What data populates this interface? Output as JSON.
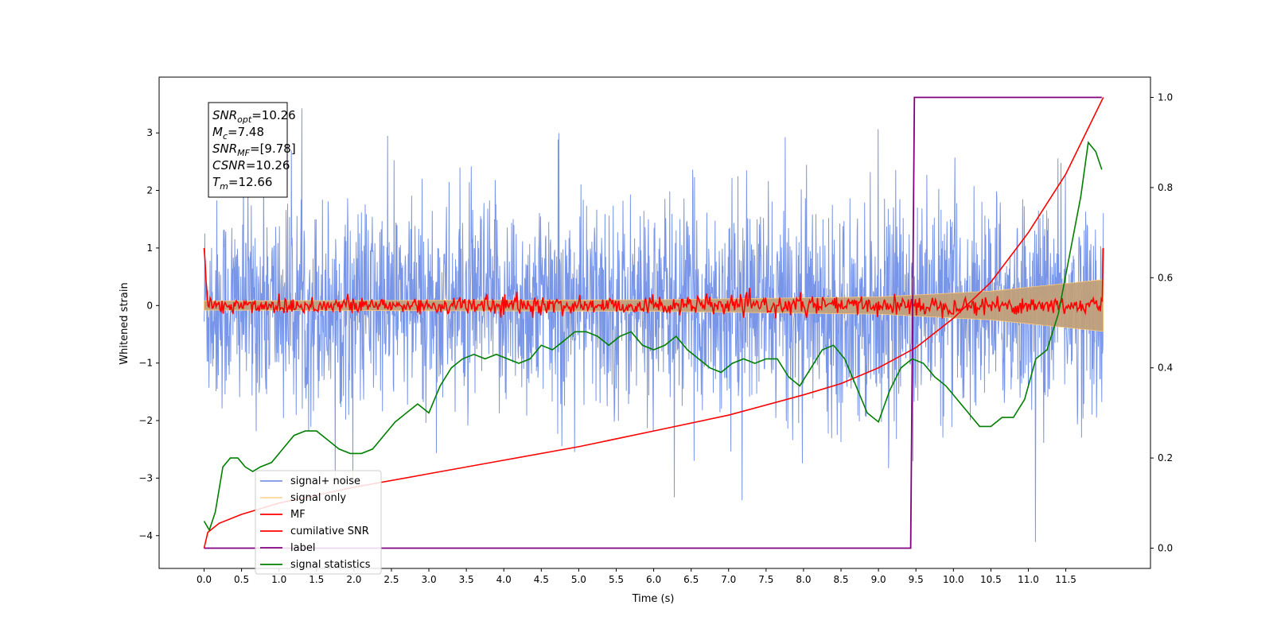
{
  "chart_data": {
    "type": "line",
    "xlabel": "Time (s)",
    "ylabel": "Whitened strain",
    "xlim": [
      -0.6,
      12.63
    ],
    "ylim": [
      -4.57,
      3.97
    ],
    "ylim_right": [
      -0.045,
      1.045
    ],
    "x_ticks": [
      0.0,
      0.5,
      1.0,
      1.5,
      2.0,
      2.5,
      3.0,
      3.5,
      4.0,
      4.5,
      5.0,
      5.5,
      6.0,
      6.5,
      7.0,
      7.5,
      8.0,
      8.5,
      9.0,
      9.5,
      10.0,
      10.5,
      11.0,
      11.5
    ],
    "x_tick_labels": [
      "0.0",
      "0.5",
      "1.0",
      "1.5",
      "2.0",
      "2.5",
      "3.0",
      "3.5",
      "4.0",
      "4.5",
      "5.0",
      "5.5",
      "6.0",
      "6.5",
      "7.0",
      "7.5",
      "8.0",
      "8.5",
      "9.0",
      "9.5",
      "10.0",
      "10.5",
      "11.0",
      "11.5"
    ],
    "y_ticks": [
      -4,
      -3,
      -2,
      -1,
      0,
      1,
      2,
      3
    ],
    "y_tick_labels": [
      "−4",
      "−3",
      "−2",
      "−1",
      "0",
      "1",
      "2",
      "3"
    ],
    "y_right_ticks": [
      0.0,
      0.2,
      0.4,
      0.6,
      0.8,
      1.0
    ],
    "y_right_tick_labels": [
      "0.0",
      "0.2",
      "0.4",
      "0.6",
      "0.8",
      "1.0"
    ],
    "annotation": [
      {
        "base": "SNR",
        "sub": "opt",
        "rest": "=10.26"
      },
      {
        "base": "M",
        "sub": "c",
        "rest": "=7.48"
      },
      {
        "base": "SNR",
        "sub": "MF",
        "rest": "=[9.78]"
      },
      {
        "base": "CSNR",
        "sub": "",
        "rest": "=10.26"
      },
      {
        "base": "T",
        "sub": "m",
        "rest": "=12.66"
      }
    ],
    "legend_position": "lower-left",
    "series": [
      {
        "name": "signal+ noise",
        "color": "#7895e8",
        "axis": "left",
        "amplitude_rms": 0.9,
        "range": [
          -4.15,
          3.6
        ]
      },
      {
        "name": "signal only",
        "color": "#ffc87a",
        "fill_color": "#c1a07a",
        "axis": "left",
        "envelope": {
          "x": [
            0.0,
            6.0,
            9.0,
            10.5,
            12.0
          ],
          "amplitude": [
            0.08,
            0.1,
            0.15,
            0.25,
            0.45
          ]
        }
      },
      {
        "name": "MF",
        "color": "#ff0000",
        "axis": "left",
        "amplitude_rms": 0.08,
        "start_value": 1.0,
        "end_value": 1.0
      },
      {
        "name": "cumilative SNR",
        "color": "#ff0000",
        "axis": "right",
        "x": [
          0.0,
          0.05,
          0.2,
          0.5,
          1.0,
          2.0,
          3.0,
          4.0,
          5.0,
          6.0,
          7.0,
          8.0,
          8.5,
          9.0,
          9.5,
          10.0,
          10.5,
          11.0,
          11.5,
          12.0
        ],
        "y": [
          0.0,
          0.035,
          0.055,
          0.075,
          0.1,
          0.135,
          0.165,
          0.195,
          0.225,
          0.26,
          0.295,
          0.34,
          0.365,
          0.4,
          0.445,
          0.51,
          0.59,
          0.7,
          0.83,
          1.0
        ]
      },
      {
        "name": "label",
        "color": "#800080",
        "axis": "right",
        "x": [
          0.0,
          9.43,
          9.48,
          11.98
        ],
        "y": [
          0.0,
          0.0,
          1.0,
          1.0
        ]
      },
      {
        "name": "signal statistics",
        "color": "#008000",
        "axis": "right",
        "x": [
          0.0,
          0.07,
          0.15,
          0.25,
          0.35,
          0.45,
          0.55,
          0.65,
          0.75,
          0.9,
          1.05,
          1.2,
          1.35,
          1.5,
          1.65,
          1.8,
          1.95,
          2.1,
          2.25,
          2.4,
          2.55,
          2.7,
          2.85,
          3.0,
          3.15,
          3.3,
          3.45,
          3.6,
          3.75,
          3.9,
          4.05,
          4.2,
          4.35,
          4.5,
          4.65,
          4.8,
          4.95,
          5.1,
          5.25,
          5.4,
          5.55,
          5.7,
          5.85,
          6.0,
          6.15,
          6.3,
          6.45,
          6.6,
          6.75,
          6.9,
          7.05,
          7.2,
          7.35,
          7.5,
          7.65,
          7.8,
          7.95,
          8.1,
          8.25,
          8.4,
          8.55,
          8.7,
          8.85,
          9.0,
          9.15,
          9.3,
          9.45,
          9.6,
          9.75,
          9.9,
          10.05,
          10.2,
          10.35,
          10.5,
          10.65,
          10.8,
          10.95,
          11.1,
          11.25,
          11.4,
          11.55,
          11.7,
          11.8,
          11.9,
          11.98
        ],
        "y": [
          0.06,
          0.04,
          0.08,
          0.18,
          0.2,
          0.2,
          0.18,
          0.17,
          0.18,
          0.19,
          0.22,
          0.25,
          0.26,
          0.26,
          0.24,
          0.22,
          0.21,
          0.21,
          0.22,
          0.25,
          0.28,
          0.3,
          0.32,
          0.3,
          0.36,
          0.4,
          0.42,
          0.43,
          0.42,
          0.43,
          0.42,
          0.41,
          0.42,
          0.45,
          0.44,
          0.46,
          0.48,
          0.48,
          0.47,
          0.45,
          0.47,
          0.48,
          0.45,
          0.44,
          0.45,
          0.47,
          0.44,
          0.42,
          0.4,
          0.39,
          0.41,
          0.42,
          0.41,
          0.42,
          0.42,
          0.38,
          0.36,
          0.4,
          0.44,
          0.45,
          0.42,
          0.36,
          0.3,
          0.28,
          0.35,
          0.4,
          0.42,
          0.41,
          0.38,
          0.36,
          0.33,
          0.3,
          0.27,
          0.27,
          0.29,
          0.29,
          0.33,
          0.42,
          0.44,
          0.52,
          0.65,
          0.78,
          0.9,
          0.88,
          0.84
        ]
      }
    ]
  }
}
